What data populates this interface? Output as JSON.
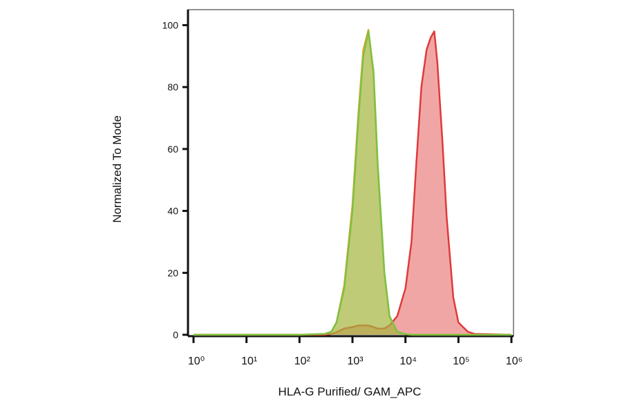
{
  "chart_data": {
    "type": "histogram-overlay",
    "x_label": "HLA-G Purified/ GAM_APC",
    "y_label": "Normalized To Mode",
    "x_scale": "log",
    "xlim": [
      1,
      1000000
    ],
    "xticks": [
      {
        "value": 1,
        "label": "10⁰"
      },
      {
        "value": 10,
        "label": "10¹"
      },
      {
        "value": 100,
        "label": "10²"
      },
      {
        "value": 1000,
        "label": "10³"
      },
      {
        "value": 10000,
        "label": "10⁴"
      },
      {
        "value": 100000,
        "label": "10⁵"
      },
      {
        "value": 1000000,
        "label": "10⁶"
      }
    ],
    "ylim": [
      0,
      105
    ],
    "yticks": [
      0,
      20,
      40,
      60,
      80,
      100
    ],
    "x": [
      1,
      100,
      300,
      400,
      500,
      700,
      1000,
      1300,
      1600,
      2000,
      2500,
      3000,
      4000,
      5000,
      7000,
      10000,
      13000,
      16000,
      20000,
      25000,
      30000,
      35000,
      40000,
      50000,
      60000,
      80000,
      100000,
      150000,
      200000,
      1000000
    ],
    "series": [
      {
        "color": "#e0393a",
        "values": [
          0,
          0,
          0,
          0.3,
          0.8,
          2,
          2.5,
          3,
          3,
          3,
          2.5,
          2,
          2,
          3,
          6,
          15,
          30,
          55,
          80,
          92,
          96,
          98,
          88,
          62,
          38,
          12,
          4,
          1,
          0.3,
          0
        ]
      },
      {
        "color": "#f0a030",
        "values": [
          0,
          0,
          0.3,
          1,
          4,
          16,
          42,
          72,
          92,
          98.5,
          84,
          54,
          20,
          6,
          1,
          0.2,
          0,
          0,
          0,
          0,
          0,
          0,
          0,
          0,
          0,
          0,
          0,
          0,
          0,
          0
        ]
      },
      {
        "color": "#7cc242",
        "values": [
          0,
          0,
          0.3,
          1,
          4,
          15,
          40,
          70,
          90,
          98,
          85,
          55,
          20,
          6,
          1,
          0.2,
          0,
          0,
          0,
          0,
          0,
          0,
          0,
          0,
          0,
          0,
          0,
          0,
          0,
          0
        ]
      }
    ]
  }
}
